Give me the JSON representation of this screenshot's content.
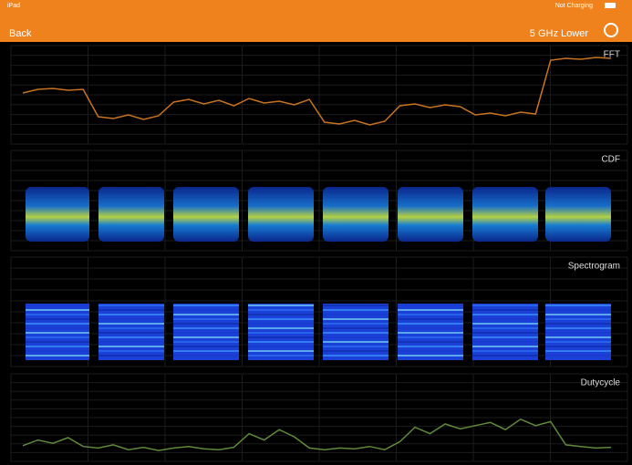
{
  "status_bar": {
    "device": "iPad",
    "battery": "Not Charging"
  },
  "nav": {
    "back": "Back",
    "band": "5 GHz Lower"
  },
  "panels": [
    {
      "label": "FFT",
      "type": "line",
      "color": "#c8741e",
      "ylim": [
        0,
        100
      ],
      "values": [
        52,
        56,
        57,
        55,
        56,
        26,
        24,
        28,
        23,
        27,
        42,
        45,
        40,
        44,
        38,
        46,
        41,
        43,
        39,
        45,
        20,
        18,
        22,
        17,
        21,
        38,
        40,
        36,
        39,
        37,
        28,
        30,
        27,
        31,
        29,
        88,
        90,
        89,
        91,
        90
      ]
    },
    {
      "label": "CDF"
    },
    {
      "label": "Spectrogram"
    },
    {
      "label": "Dutycycle",
      "type": "line",
      "color": "#5f8a3a",
      "ylim": [
        0,
        100
      ],
      "values": [
        15,
        22,
        18,
        25,
        14,
        12,
        16,
        10,
        13,
        9,
        12,
        14,
        11,
        10,
        13,
        30,
        22,
        35,
        26,
        12,
        10,
        12,
        11,
        14,
        10,
        20,
        38,
        30,
        42,
        36,
        40,
        44,
        35,
        48,
        40,
        45,
        16,
        14,
        12,
        13
      ]
    }
  ]
}
